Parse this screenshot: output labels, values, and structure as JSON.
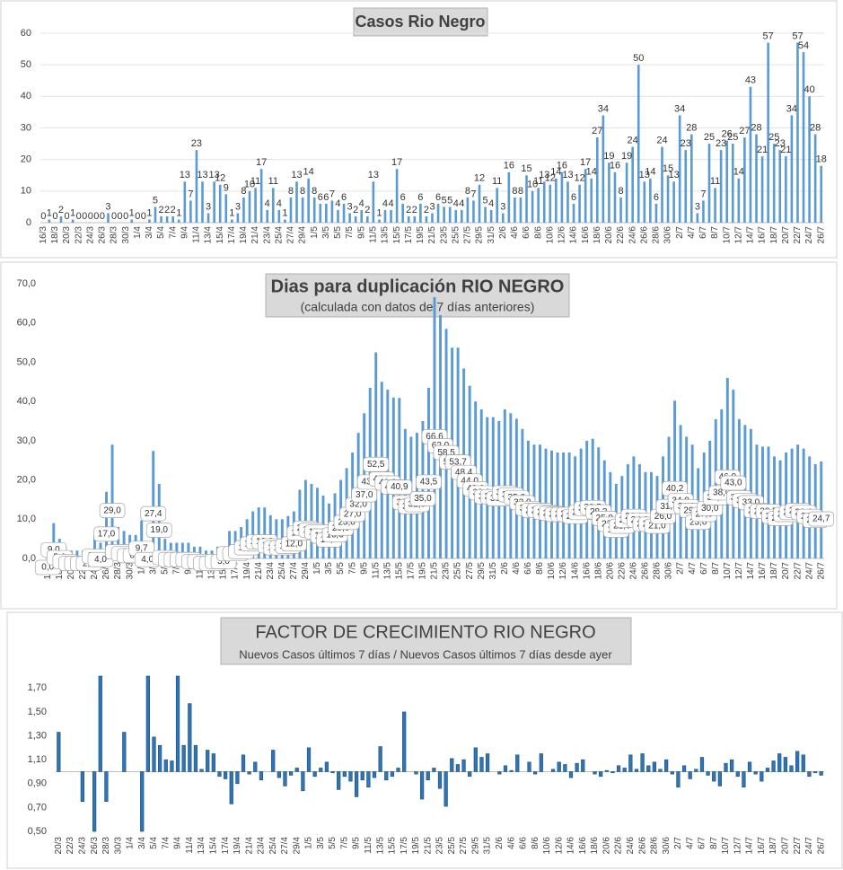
{
  "charts": [
    {
      "chart_data": {
        "type": "bar",
        "title": "Casos Rio Negro",
        "color": "#5b9bd5",
        "grid": true,
        "ylim": [
          0,
          60
        ],
        "yticks": [
          0,
          10,
          20,
          30,
          40,
          50,
          60
        ],
        "categories": [
          "16/3",
          null,
          "18/3",
          null,
          "20/3",
          null,
          "22/3",
          null,
          "24/3",
          null,
          "26/3",
          null,
          "28/3",
          null,
          "30/3",
          null,
          "1/4",
          null,
          "3/4",
          null,
          "5/4",
          null,
          "7/4",
          null,
          "9/4",
          null,
          "11/4",
          null,
          "13/4",
          null,
          "15/4",
          null,
          "17/4",
          null,
          "19/4",
          null,
          "21/4",
          null,
          "23/4",
          null,
          "25/4",
          null,
          "27/4",
          null,
          "29/4",
          null,
          "1/5",
          null,
          "3/5",
          null,
          "5/5",
          null,
          "7/5",
          null,
          "9/5",
          null,
          "11/5",
          null,
          "13/5",
          null,
          "15/5",
          null,
          "17/5",
          null,
          "19/5",
          null,
          "21/5",
          null,
          "23/5",
          null,
          "25/5",
          null,
          "27/5",
          null,
          "29/5",
          null,
          "31/5",
          null,
          "2/6",
          null,
          "4/6",
          null,
          "6/6",
          null,
          "8/6",
          null,
          "10/6",
          null,
          "12/6",
          null,
          "14/6",
          null,
          "16/6",
          null,
          "18/6",
          null,
          "20/6",
          null,
          "22/6",
          null,
          "24/6",
          null,
          "26/6",
          null,
          "28/6",
          null,
          "30/6",
          null,
          "2/7",
          null,
          "4/7",
          null,
          "6/7",
          null,
          "8/7",
          null,
          "10/7",
          null,
          "12/7",
          null,
          "14/7",
          null,
          "16/7",
          null,
          "18/7",
          null,
          "20/7",
          null,
          "22/7",
          null,
          "24/7",
          null,
          "26/7"
        ],
        "values": [
          0,
          1,
          0,
          2,
          0,
          1,
          0,
          0,
          0,
          0,
          0,
          3,
          0,
          0,
          0,
          1,
          0,
          0,
          1,
          5,
          2,
          2,
          2,
          1,
          13,
          7,
          23,
          13,
          3,
          13,
          12,
          9,
          1,
          3,
          8,
          10,
          11,
          17,
          4,
          11,
          4,
          1,
          8,
          13,
          8,
          14,
          8,
          6,
          6,
          7,
          4,
          6,
          3,
          2,
          4,
          2,
          13,
          1,
          4,
          4,
          17,
          6,
          2,
          2,
          6,
          2,
          3,
          6,
          5,
          5,
          4,
          4,
          8,
          7,
          12,
          5,
          4,
          11,
          3,
          16,
          8,
          8,
          15,
          10,
          11,
          13,
          12,
          14,
          16,
          13,
          6,
          12,
          17,
          14,
          27,
          34,
          19,
          16,
          8,
          19,
          24,
          50,
          13,
          14,
          6,
          24,
          15,
          13,
          34,
          23,
          28,
          3,
          7,
          25,
          11,
          23,
          26,
          25,
          14,
          27,
          43,
          28,
          21,
          57,
          25,
          23,
          21,
          34,
          57,
          54,
          40,
          28,
          18
        ]
      }
    },
    {
      "chart_data": {
        "type": "bar",
        "title": "Dias para duplicación RIO NEGRO",
        "subtitle": "(calculada con datos de 7 días anteriores)",
        "color": "#5b9bd5",
        "grid": false,
        "ylim": [
          0,
          70
        ],
        "yticks": [
          {
            "value": 0,
            "label": "0,0"
          },
          {
            "value": 10,
            "label": "10,0"
          },
          {
            "value": 20,
            "label": "20,0"
          },
          {
            "value": 30,
            "label": "30,0"
          },
          {
            "value": 40,
            "label": "40,0"
          },
          {
            "value": 50,
            "label": "50,0"
          },
          {
            "value": 60,
            "label": "60,0"
          },
          {
            "value": 70,
            "label": "70,0"
          }
        ],
        "categories": [
          "16/3",
          null,
          "18/3",
          null,
          "20/3",
          null,
          "22/3",
          null,
          "24/3",
          null,
          "26/3",
          null,
          "28/3",
          null,
          "30/3",
          null,
          "1/4",
          null,
          "3/4",
          null,
          "5/4",
          null,
          "7/4",
          null,
          "9/4",
          null,
          "11/4",
          null,
          "13/4",
          null,
          "15/4",
          null,
          "17/4",
          null,
          "19/4",
          null,
          "21/4",
          null,
          "23/4",
          null,
          "25/4",
          null,
          "27/4",
          null,
          "29/4",
          null,
          "1/5",
          null,
          "3/5",
          null,
          "5/5",
          null,
          "7/5",
          null,
          "9/5",
          null,
          "11/5",
          null,
          "13/5",
          null,
          "15/5",
          null,
          "17/5",
          null,
          "19/5",
          null,
          "21/5",
          null,
          "23/5",
          null,
          "25/5",
          null,
          "27/5",
          null,
          "29/5",
          null,
          "31/5",
          null,
          "2/6",
          null,
          "4/6",
          null,
          "6/6",
          null,
          "8/6",
          null,
          "10/6",
          null,
          "12/6",
          null,
          "14/6",
          null,
          "16/6",
          null,
          "18/6",
          null,
          "20/6",
          null,
          "22/6",
          null,
          "24/6",
          null,
          "26/6",
          null,
          "28/6",
          null,
          "30/6",
          null,
          "2/7",
          null,
          "4/7",
          null,
          "6/7",
          null,
          "8/7",
          null,
          "10/7",
          null,
          "12/7",
          null,
          "14/7",
          null,
          "16/7",
          null,
          "18/7",
          null,
          "20/7",
          null,
          "22/7",
          null,
          "24/7",
          null,
          "26/7"
        ],
        "values": [
          0,
          9.0,
          5.0,
          3.0,
          2.0,
          2.0,
          2.0,
          2.0,
          5.7,
          4.0,
          17.0,
          29.0,
          8.0,
          7.0,
          6.0,
          6.0,
          9.7,
          4.0,
          27.4,
          19.0,
          5.0,
          4.0,
          4.0,
          4.0,
          4.0,
          3.0,
          3.0,
          2.0,
          2.0,
          3.0,
          3.0,
          7.0,
          7.0,
          8.0,
          10.0,
          12.0,
          13.0,
          13.0,
          11.0,
          10.0,
          10.0,
          10.8,
          12.0,
          17.5,
          20.0,
          19.0,
          18.0,
          16.0,
          14.0,
          16.6,
          20.0,
          23.0,
          27.0,
          32.0,
          37.0,
          43.5,
          52.5,
          45.0,
          43.0,
          41.0,
          40.9,
          33.0,
          31.0,
          32.0,
          35.0,
          43.5,
          66.6,
          62.0,
          58.5,
          53.7,
          53.7,
          48.4,
          44.0,
          40.0,
          38.0,
          36.0,
          36.0,
          35.0,
          38.0,
          37.0,
          35.6,
          33.0,
          30.0,
          29.0,
          29.0,
          28.0,
          27.5,
          27.0,
          27.0,
          27.0,
          26.0,
          28.0,
          30.0,
          30.5,
          28.3,
          25.0,
          22.0,
          19.0,
          21.0,
          24.0,
          26.0,
          24.0,
          22.0,
          22.0,
          21.0,
          26.0,
          31.0,
          40.2,
          34.0,
          31.0,
          29.0,
          23.0,
          27.0,
          30.0,
          35.5,
          38.0,
          46.0,
          43.0,
          35.5,
          34.0,
          33.0,
          29.0,
          28.5,
          28.5,
          26.0,
          25.0,
          27.0,
          28.0,
          29.0,
          28.0,
          26.0,
          24.0,
          24.7
        ],
        "value_labels": [
          "0,0",
          "9,0",
          "5,0",
          "3,0",
          "2,0",
          "2,0",
          "2,0",
          "2,0",
          "5,7",
          "4,0",
          "17,0",
          "29,0",
          "8,0",
          "7,0",
          "6,0",
          "6,0",
          "9,7",
          "4,0",
          "27,4",
          "19,0",
          "5,0",
          "4,0",
          "4,0",
          "4,0",
          "4,0",
          "3,0",
          "3,0",
          "2,0",
          "2,0",
          "3,0",
          "3,0",
          "7,0",
          "7,0",
          "8,0",
          "10,0",
          "12,0",
          "13,0",
          "13,0",
          "11,0",
          "10,0",
          "10,0",
          "10,8",
          "12,0",
          "17,5",
          "20,0",
          "19,0",
          "18,0",
          "16,0",
          "14,0",
          "16,6",
          "20,0",
          "23,0",
          "27,0",
          "32,0",
          "37,0",
          "43,5",
          "52,5",
          "45,0",
          "43,0",
          "41,0",
          "40,9",
          "33,0",
          "31,0",
          "32,0",
          "35,0",
          "43,5",
          "66,6",
          "62,0",
          "58,5",
          "53,7",
          "53,7",
          "48,4",
          "44,0",
          "40,0",
          "38,0",
          "36,0",
          "36,0",
          "35,0",
          "38,0",
          "37,0",
          "35,6",
          "33,0",
          "30,0",
          "29,0",
          "29,0",
          "28,0",
          "27,5",
          "27,0",
          "27,0",
          "27,0",
          "26,0",
          "28,0",
          "30,0",
          "30,5",
          "28,3",
          "25,0",
          "22,0",
          "19,0",
          "21,0",
          "24,0",
          "26,0",
          "24,0",
          "22,0",
          "22,0",
          "21,0",
          "26,0",
          "31,0",
          "40,2",
          "34,0",
          "31,0",
          "29,0",
          "23,0",
          "27,0",
          "30,0",
          "35,5",
          "38,0",
          "46,0",
          "43,0",
          "35,5",
          "34,0",
          "33,0",
          "29,0",
          "28,5",
          "28,5",
          "26,0",
          "25,0",
          "27,0",
          "28,0",
          "29,0",
          "28,0",
          "26,0",
          "24,0",
          "24,7"
        ]
      }
    },
    {
      "chart_data": {
        "type": "bar",
        "title": "FACTOR DE CRECIMIENTO RIO NEGRO",
        "subtitle": "Nuevos Casos últimos 7 días / Nuevos Casos últimos 7 días desde ayer",
        "color": "#2e75b6",
        "grid": false,
        "baseline": 1.0,
        "ylim": [
          0.5,
          1.8
        ],
        "yticks": [
          {
            "value": 0.5,
            "label": "0,50"
          },
          {
            "value": 0.7,
            "label": "0,70"
          },
          {
            "value": 0.9,
            "label": "0,90"
          },
          {
            "value": 1.1,
            "label": "1,10"
          },
          {
            "value": 1.3,
            "label": "1,30"
          },
          {
            "value": 1.5,
            "label": "1,50"
          },
          {
            "value": 1.7,
            "label": "1,70"
          }
        ],
        "categories": [
          "20/3",
          null,
          "22/3",
          null,
          "24/3",
          null,
          "26/3",
          null,
          "28/3",
          null,
          "30/3",
          null,
          "1/4",
          null,
          "3/4",
          null,
          "5/4",
          null,
          "7/4",
          null,
          "9/4",
          null,
          "11/4",
          null,
          "13/4",
          null,
          "15/4",
          null,
          "17/4",
          null,
          "19/4",
          null,
          "21/4",
          null,
          "23/4",
          null,
          "25/4",
          null,
          "27/4",
          null,
          "29/4",
          null,
          "1/5",
          null,
          "3/5",
          null,
          "5/5",
          null,
          "7/5",
          null,
          "9/5",
          null,
          "11/5",
          null,
          "13/5",
          null,
          "15/5",
          null,
          "17/5",
          null,
          "19/5",
          null,
          "21/5",
          null,
          "23/5",
          null,
          "25/5",
          null,
          "27/5",
          null,
          "29/5",
          null,
          "31/5",
          null,
          "2/6",
          null,
          "4/6",
          null,
          "6/6",
          null,
          "8/6",
          null,
          "10/6",
          null,
          "12/6",
          null,
          "14/6",
          null,
          "16/6",
          null,
          "18/6",
          null,
          "20/6",
          null,
          "22/6",
          null,
          "24/6",
          null,
          "26/6",
          null,
          "28/6",
          null,
          "30/6",
          null,
          "2/7",
          null,
          "4/7",
          null,
          "6/7",
          null,
          "8/7",
          null,
          "10/7",
          null,
          "12/7",
          null,
          "14/7",
          null,
          "16/7",
          null,
          "18/7",
          null,
          "20/7",
          null,
          "22/7",
          null,
          "24/7",
          null,
          "26/7"
        ],
        "values": [
          1.33,
          1.0,
          1.0,
          1.0,
          0.75,
          1.0,
          0.5,
          1.8,
          0.75,
          1.0,
          1.0,
          1.33,
          1.0,
          1.0,
          0.5,
          1.8,
          1.29,
          1.22,
          1.1,
          1.09,
          1.8,
          1.22,
          1.57,
          1.22,
          1.02,
          1.18,
          1.15,
          0.96,
          0.94,
          0.73,
          0.9,
          1.14,
          0.98,
          1.08,
          0.93,
          1.0,
          1.18,
          0.95,
          0.88,
          0.97,
          1.03,
          0.84,
          1.2,
          0.96,
          1.03,
          1.08,
          0.99,
          0.85,
          0.96,
          0.92,
          0.79,
          0.93,
          0.87,
          0.95,
          1.21,
          0.93,
          0.96,
          1.03,
          1.5,
          1.0,
          0.98,
          0.77,
          0.93,
          1.03,
          0.86,
          0.71,
          1.11,
          1.06,
          1.1,
          0.96,
          1.2,
          1.12,
          1.15,
          1.0,
          0.98,
          1.05,
          1.01,
          1.14,
          1.0,
          1.08,
          0.98,
          1.15,
          1.0,
          1.02,
          1.08,
          1.06,
          0.95,
          1.07,
          1.1,
          1.0,
          0.98,
          0.96,
          1.01,
          0.99,
          1.05,
          1.03,
          1.14,
          1.02,
          1.15,
          1.05,
          1.08,
          1.02,
          1.1,
          0.98,
          0.87,
          1.05,
          0.94,
          1.02,
          1.12,
          0.97,
          0.92,
          0.88,
          1.07,
          1.1,
          0.96,
          0.87,
          1.08,
          0.98,
          0.92,
          1.03,
          1.09,
          1.15,
          1.12,
          1.05,
          1.17,
          1.14,
          0.96,
          0.99,
          0.97
        ]
      }
    }
  ]
}
